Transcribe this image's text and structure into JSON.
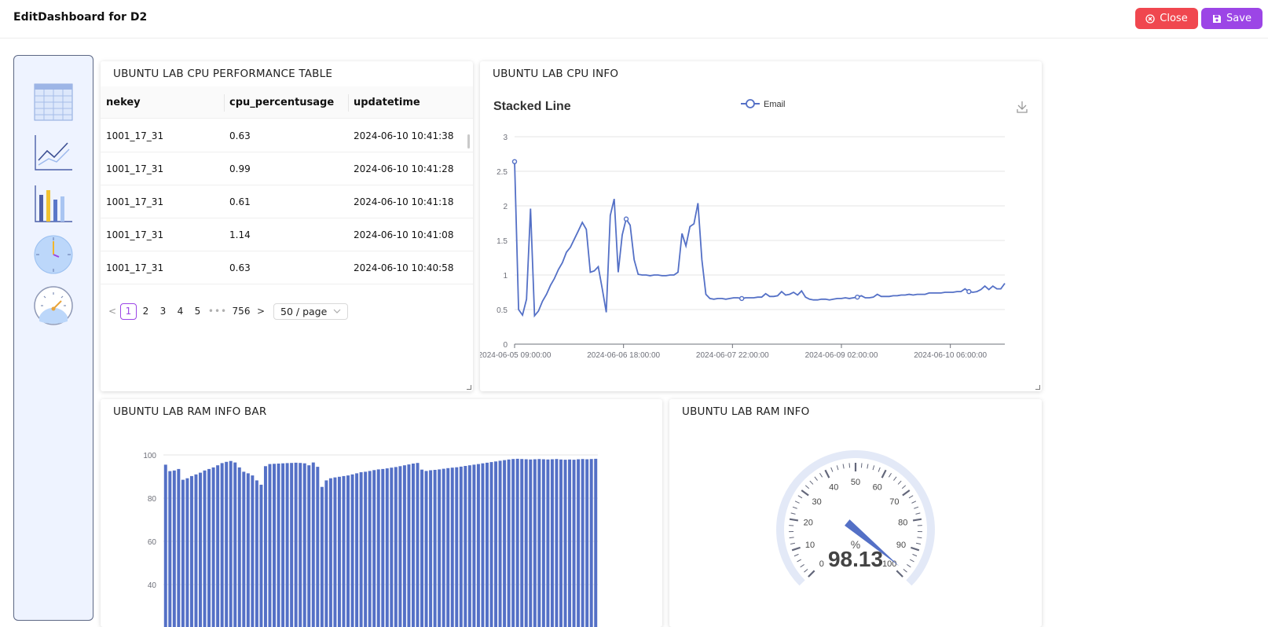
{
  "header": {
    "title": "EditDashboard for D2",
    "close_label": "Close",
    "save_label": "Save"
  },
  "colors": {
    "close": "#f0474f",
    "save": "#9c45e6",
    "series": "#5470c6",
    "gauge_track": "#e3e9f7"
  },
  "palette": {
    "items": [
      "table-icon",
      "line-chart-icon",
      "bar-chart-icon",
      "clock-icon",
      "gauge-icon"
    ]
  },
  "table_card": {
    "title": "UBUNTU LAB CPU PERFORMANCE TABLE",
    "columns": [
      "nekey",
      "cpu_percentusage",
      "updatetime"
    ],
    "rows": [
      [
        "1001_17_31",
        "0.63",
        "2024-06-10 10:41:38"
      ],
      [
        "1001_17_31",
        "0.99",
        "2024-06-10 10:41:28"
      ],
      [
        "1001_17_31",
        "0.61",
        "2024-06-10 10:41:18"
      ],
      [
        "1001_17_31",
        "1.14",
        "2024-06-10 10:41:08"
      ],
      [
        "1001_17_31",
        "0.63",
        "2024-06-10 10:40:58"
      ]
    ],
    "pagination": {
      "prev": "<",
      "pages": [
        "1",
        "2",
        "3",
        "4",
        "5"
      ],
      "ellipsis": "•••",
      "last": "756",
      "next": ">",
      "page_size": "50 / page",
      "current": "1"
    }
  },
  "line_card": {
    "title": "UBUNTU LAB CPU INFO",
    "chart_title": "Stacked Line",
    "legend": "Email",
    "y_ticks": [
      "0",
      "0.5",
      "1",
      "1.5",
      "2",
      "2.5",
      "3"
    ],
    "x_ticks": [
      "2024-06-05 09:00:00",
      "2024-06-06 18:00:00",
      "2024-06-07 22:00:00",
      "2024-06-09 02:00:00",
      "2024-06-10 06:00:00"
    ]
  },
  "bar_card": {
    "title": "UBUNTU LAB RAM INFO BAR",
    "y_ticks": [
      "40",
      "60",
      "80",
      "100"
    ]
  },
  "gauge_card": {
    "title": "UBUNTU LAB RAM INFO",
    "unit": "%",
    "value_label": "98.13",
    "value": 98.13,
    "min": 0,
    "max": 100,
    "tick_labels": [
      "0",
      "10",
      "20",
      "30",
      "40",
      "50",
      "60",
      "70",
      "80",
      "90",
      "100"
    ]
  },
  "chart_data": [
    {
      "type": "line",
      "title": "Stacked Line",
      "series": [
        {
          "name": "Email",
          "values": [
            2.64,
            0.5,
            0.42,
            0.65,
            1.96,
            0.41,
            0.48,
            0.62,
            0.72,
            0.85,
            0.95,
            1.08,
            1.18,
            1.33,
            1.4,
            1.52,
            1.64,
            1.76,
            1.66,
            1.04,
            1.06,
            1.12,
            0.8,
            0.46,
            1.86,
            2.1,
            1.04,
            1.58,
            1.81,
            1.72,
            1.22,
            1.01,
            1.0,
            1.0,
            0.99,
            1.0,
            1.0,
            0.99,
            0.99,
            1.0,
            1.0,
            1.04,
            1.6,
            1.42,
            1.7,
            1.74,
            2.04,
            1.22,
            0.72,
            0.66,
            0.65,
            0.66,
            0.66,
            0.65,
            0.66,
            0.67,
            0.67,
            0.66,
            0.67,
            0.67,
            0.67,
            0.68,
            0.68,
            0.73,
            0.69,
            0.69,
            0.7,
            0.76,
            0.71,
            0.72,
            0.75,
            0.71,
            0.77,
            0.68,
            0.65,
            0.64,
            0.64,
            0.65,
            0.65,
            0.64,
            0.65,
            0.66,
            0.66,
            0.67,
            0.66,
            0.67,
            0.68,
            0.7,
            0.67,
            0.67,
            0.68,
            0.72,
            0.69,
            0.69,
            0.69,
            0.7,
            0.7,
            0.71,
            0.71,
            0.72,
            0.71,
            0.72,
            0.72,
            0.72,
            0.74,
            0.74,
            0.74,
            0.74,
            0.75,
            0.75,
            0.75,
            0.76,
            0.76,
            0.8,
            0.76,
            0.75,
            0.76,
            0.79,
            0.84,
            0.79,
            0.84,
            0.8,
            0.8,
            0.88
          ]
        }
      ],
      "x_ticks": [
        "2024-06-05 09:00:00",
        "2024-06-06 18:00:00",
        "2024-06-07 22:00:00",
        "2024-06-09 02:00:00",
        "2024-06-10 06:00:00"
      ],
      "ylim": [
        0,
        3
      ],
      "grid": true,
      "legend_position": "top-center"
    },
    {
      "type": "bar",
      "title": "UBUNTU LAB RAM INFO BAR",
      "series": [
        {
          "values": [
            95.5,
            92.5,
            92.8,
            93.5,
            88.5,
            89.2,
            90.2,
            91,
            91.8,
            92.8,
            93.5,
            94.2,
            95.2,
            96.2,
            96.8,
            97.2,
            96.5,
            94.2,
            92.2,
            91.5,
            90.5,
            88.2,
            86.2,
            94.8,
            95.8,
            95.9,
            96,
            96.1,
            96.2,
            96.3,
            96.4,
            96.3,
            96.1,
            95.2,
            96.5,
            94.5,
            85.2,
            88.2,
            89.2,
            89.6,
            89.9,
            90.2,
            90.5,
            91,
            91.5,
            92,
            92.2,
            92.6,
            93,
            93.3,
            93.5,
            93.8,
            94.1,
            94.4,
            94.8,
            95.2,
            95.6,
            96,
            96.3,
            93.2,
            92.6,
            92.9,
            93.1,
            93.3,
            93.6,
            93.9,
            94.1,
            94.3,
            94.6,
            94.9,
            95.2,
            95.5,
            95.8,
            96.1,
            96.4,
            96.7,
            97,
            97.3,
            97.6,
            97.9,
            98.1,
            98.2,
            98.1,
            98,
            97.9,
            98,
            98.1,
            98,
            97.9,
            98,
            98.1,
            97.9,
            97.8,
            97.9,
            97.8,
            98,
            98.1,
            98,
            98.1,
            98.2
          ]
        }
      ],
      "ylim": [
        30,
        100
      ],
      "y_ticks": [
        40,
        60,
        80,
        100
      ],
      "grid": true
    },
    {
      "type": "gauge",
      "title": "UBUNTU LAB RAM INFO",
      "value": 98.13,
      "min": 0,
      "max": 100,
      "unit": "%"
    }
  ]
}
